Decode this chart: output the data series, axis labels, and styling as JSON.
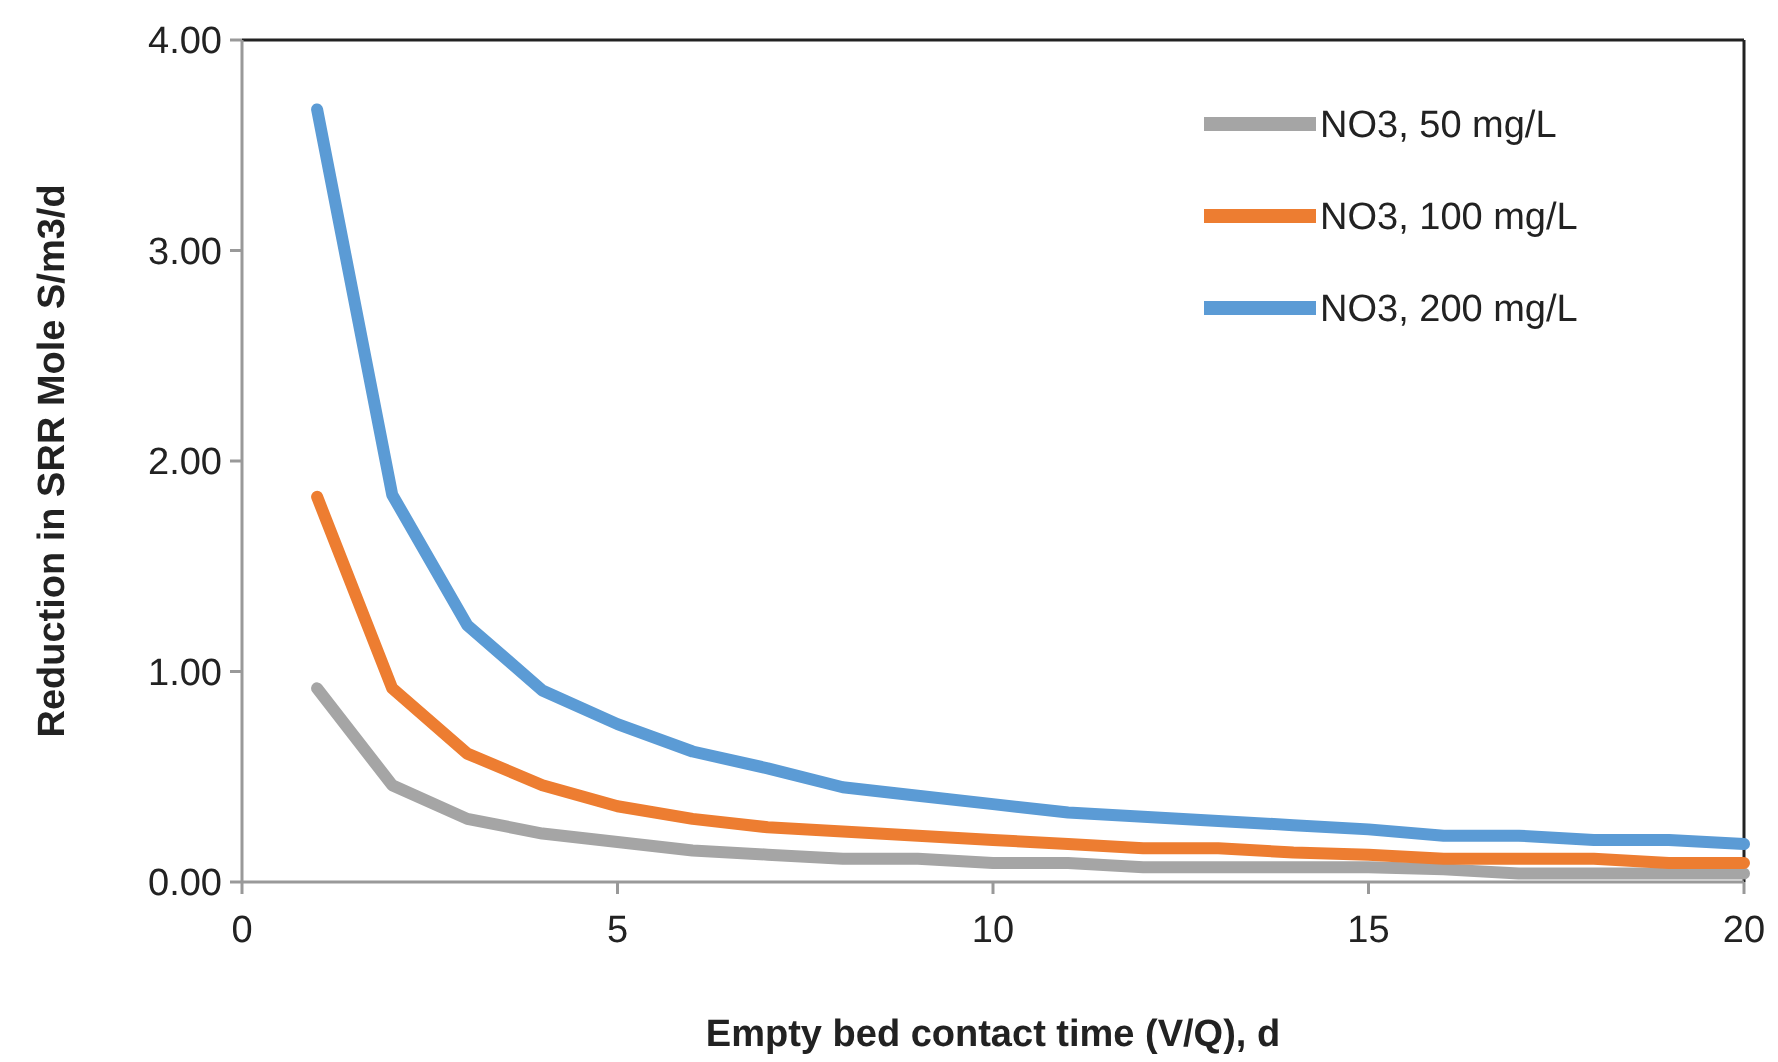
{
  "chart_data": {
    "type": "line",
    "xlabel": "Empty bed contact time (V/Q), d",
    "ylabel": "Reduction in SRR Mole S/m3/d",
    "x": [
      1,
      2,
      3,
      4,
      5,
      6,
      7,
      8,
      9,
      10,
      11,
      12,
      13,
      14,
      15,
      16,
      17,
      18,
      19,
      20
    ],
    "series": [
      {
        "name": "NO3, 50 mg/L",
        "color": "#a5a5a5",
        "values": [
          0.92,
          0.46,
          0.3,
          0.23,
          0.19,
          0.15,
          0.13,
          0.11,
          0.11,
          0.09,
          0.09,
          0.07,
          0.07,
          0.07,
          0.07,
          0.06,
          0.04,
          0.04,
          0.04,
          0.04
        ]
      },
      {
        "name": "NO3, 100 mg/L",
        "color": "#ed7d31",
        "values": [
          1.83,
          0.92,
          0.61,
          0.46,
          0.36,
          0.3,
          0.26,
          0.24,
          0.22,
          0.2,
          0.18,
          0.16,
          0.16,
          0.14,
          0.13,
          0.11,
          0.11,
          0.11,
          0.09,
          0.09
        ]
      },
      {
        "name": "NO3, 200 mg/L",
        "color": "#5b9bd5",
        "values": [
          3.67,
          1.84,
          1.22,
          0.91,
          0.75,
          0.62,
          0.54,
          0.45,
          0.41,
          0.37,
          0.33,
          0.31,
          0.29,
          0.27,
          0.25,
          0.22,
          0.22,
          0.2,
          0.2,
          0.18
        ]
      }
    ],
    "xlim": [
      0,
      20
    ],
    "xticks": [
      0,
      5,
      10,
      15,
      20
    ],
    "ylim": [
      0,
      4
    ],
    "yticks": [
      {
        "value": 0,
        "label": "0.00"
      },
      {
        "value": 1,
        "label": "1.00"
      },
      {
        "value": 2,
        "label": "2.00"
      },
      {
        "value": 3,
        "label": "3.00"
      },
      {
        "value": 4,
        "label": "4.00"
      }
    ],
    "grid": false,
    "legend": "top right",
    "marker": "none",
    "line_style": "solid"
  }
}
